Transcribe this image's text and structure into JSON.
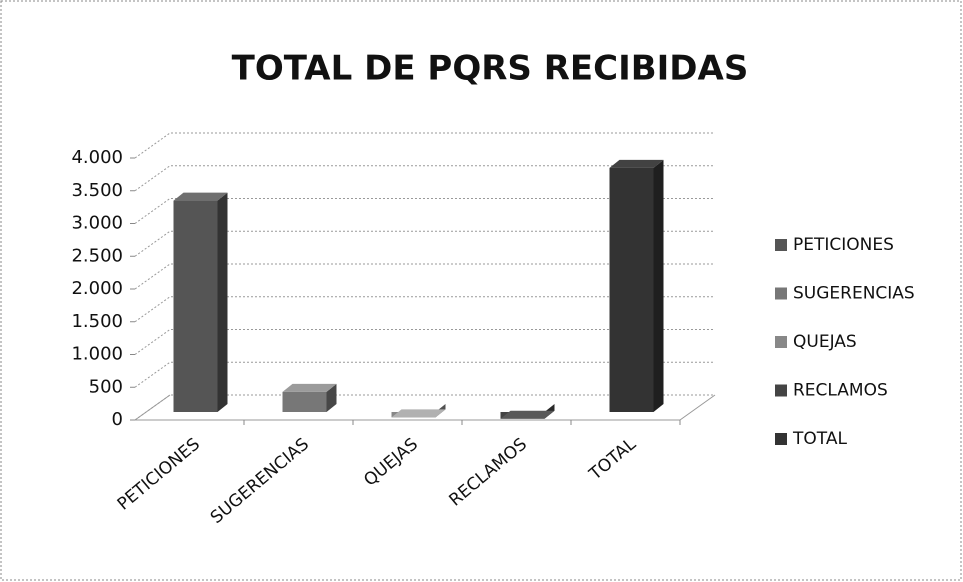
{
  "chart_data": {
    "type": "bar3d",
    "title": "TOTAL DE PQRS RECIBIDAS",
    "categories": [
      "PETICIONES",
      "SUGERENCIAS",
      "QUEJAS",
      "RECLAMOS",
      "TOTAL"
    ],
    "values": [
      3350,
      430,
      40,
      20,
      3850
    ],
    "colors": [
      "#555555",
      "#777777",
      "#888888",
      "#444444",
      "#333333"
    ],
    "ylim": [
      0,
      4000
    ],
    "yticks": [
      0,
      500,
      {
        "value": 1000,
        "label": "1.000"
      },
      {
        "value": 1500,
        "label": "1.500"
      },
      {
        "value": 2000,
        "label": "2.000"
      },
      {
        "value": 2500,
        "label": "2.500"
      },
      {
        "value": 3000,
        "label": "3.000"
      },
      {
        "value": 3500,
        "label": "3.500"
      },
      {
        "value": 4000,
        "label": "4.000"
      }
    ],
    "grid": true,
    "legend": "right"
  }
}
